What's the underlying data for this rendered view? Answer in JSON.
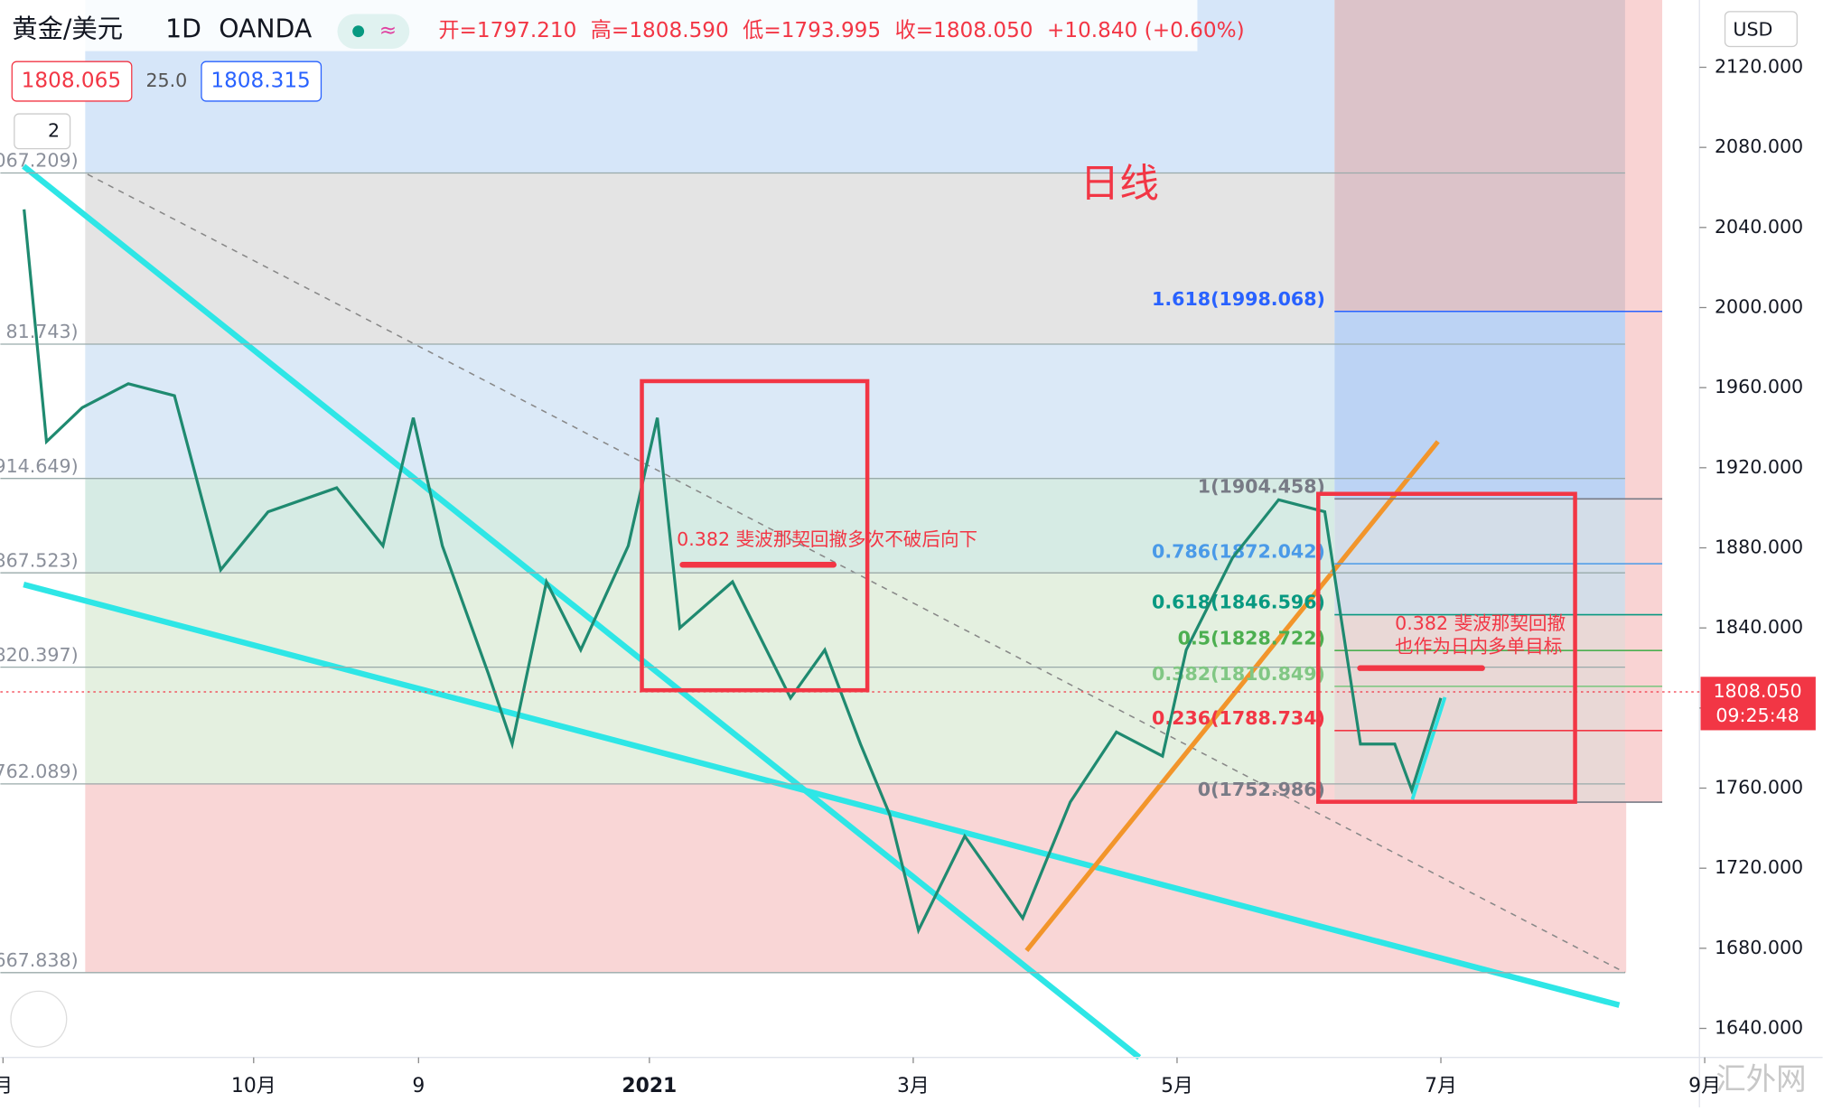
{
  "header": {
    "symbol": "黄金/美元",
    "interval": "1D",
    "source": "OANDA",
    "ohlc": [
      "开=1797.210",
      "高=1808.590",
      "低=1793.995",
      "收=1808.050",
      "+10.840 (+0.60%)"
    ],
    "bid": "1808.065",
    "spread": "25.0",
    "ask": "1808.315",
    "currency": "USD",
    "indicator_count": "2",
    "watermark": "汇外网"
  },
  "chart_data": {
    "type": "line",
    "color": "#1f8a70",
    "x": [
      8.26,
      8.43,
      8.7,
      9.05,
      9.4,
      9.75,
      10.11,
      10.63,
      10.98,
      11.21,
      11.43,
      11.78,
      11.96,
      12.22,
      12.48,
      12.84,
      13.06,
      13.23,
      13.63,
      14.07,
      14.33,
      14.6,
      14.82,
      15.04,
      15.39,
      15.83,
      16.19,
      16.54,
      16.89,
      17.07,
      17.42,
      17.77,
      18.12,
      18.39,
      18.65,
      18.78,
      19.0
    ],
    "values": [
      2049,
      1933,
      1950,
      1962,
      1956,
      1869,
      1898,
      1910,
      1881,
      1945,
      1881,
      1817,
      1782,
      1863,
      1829,
      1881,
      1945,
      1840,
      1863,
      1805,
      1829,
      1782,
      1747,
      1689,
      1736,
      1695,
      1753,
      1788,
      1776,
      1829,
      1875,
      1904,
      1898,
      1782,
      1782,
      1759,
      1805
    ],
    "xlim": [
      8.08,
      20.96
    ],
    "ylim": [
      1625.5,
      2153.6
    ],
    "xticks": [
      {
        "value": 8.1,
        "label": "月"
      },
      {
        "value": 10,
        "label": "10月"
      },
      {
        "value": 11.25,
        "label": "9"
      },
      {
        "value": 13,
        "label": "2021"
      },
      {
        "value": 15,
        "label": "3月"
      },
      {
        "value": 17,
        "label": "5月"
      },
      {
        "value": 19,
        "label": "7月"
      },
      {
        "value": 21,
        "label": "9月"
      }
    ],
    "yticks": [
      {
        "value": 1640,
        "label": "1640.000"
      },
      {
        "value": 1680,
        "label": "1680.000"
      },
      {
        "value": 1720,
        "label": "1720.000"
      },
      {
        "value": 1760,
        "label": "1760.000"
      },
      {
        "value": 1800,
        "label": "1800.000"
      },
      {
        "value": 1840,
        "label": "1840.000"
      },
      {
        "value": 1880,
        "label": "1880.000"
      },
      {
        "value": 1920,
        "label": "1920.000"
      },
      {
        "value": 1960,
        "label": "1960.000"
      },
      {
        "value": 2000,
        "label": "2000.000"
      },
      {
        "value": 2040,
        "label": "2040.000"
      },
      {
        "value": 2080,
        "label": "2080.000"
      },
      {
        "value": 2120,
        "label": "2120.000"
      }
    ],
    "last_price": {
      "value": 1808.05,
      "label": "1808.050"
    },
    "countdown": "09:25:48",
    "left_levels": [
      {
        "value": 2067.209,
        "label": "067.209)"
      },
      {
        "value": 1981.743,
        "label": "81.743)"
      },
      {
        "value": 1914.649,
        "label": "914.649)"
      },
      {
        "value": 1867.523,
        "label": "867.523)"
      },
      {
        "value": 1820.397,
        "label": "820.397)"
      },
      {
        "value": 1762.089,
        "label": "762.089)"
      },
      {
        "value": 1667.838,
        "label": "667.838)"
      }
    ],
    "right_levels": [
      {
        "value": 1998.068,
        "label": "1.618(1998.068)",
        "color": "#2962ff"
      },
      {
        "value": 1904.458,
        "label": "1(1904.458)",
        "color": "#787b86"
      },
      {
        "value": 1872.042,
        "label": "0.786(1872.042)",
        "color": "#4a9ae8"
      },
      {
        "value": 1846.596,
        "label": "0.618(1846.596)",
        "color": "#089981"
      },
      {
        "value": 1828.722,
        "label": "0.5(1828.722)",
        "color": "#4caf50"
      },
      {
        "value": 1810.849,
        "label": "0.382(1810.849)",
        "color": "#81c784"
      },
      {
        "value": 1788.734,
        "label": "0.236(1788.734)",
        "color": "#f23645"
      },
      {
        "value": 1752.986,
        "label": "0(1752.986)",
        "color": "#787b86"
      }
    ],
    "annotations": [
      "日线",
      "0.382 斐波那契回撤多次不破后向下",
      "0.382 斐波那契回撤",
      "也作为日内多单目标"
    ]
  }
}
